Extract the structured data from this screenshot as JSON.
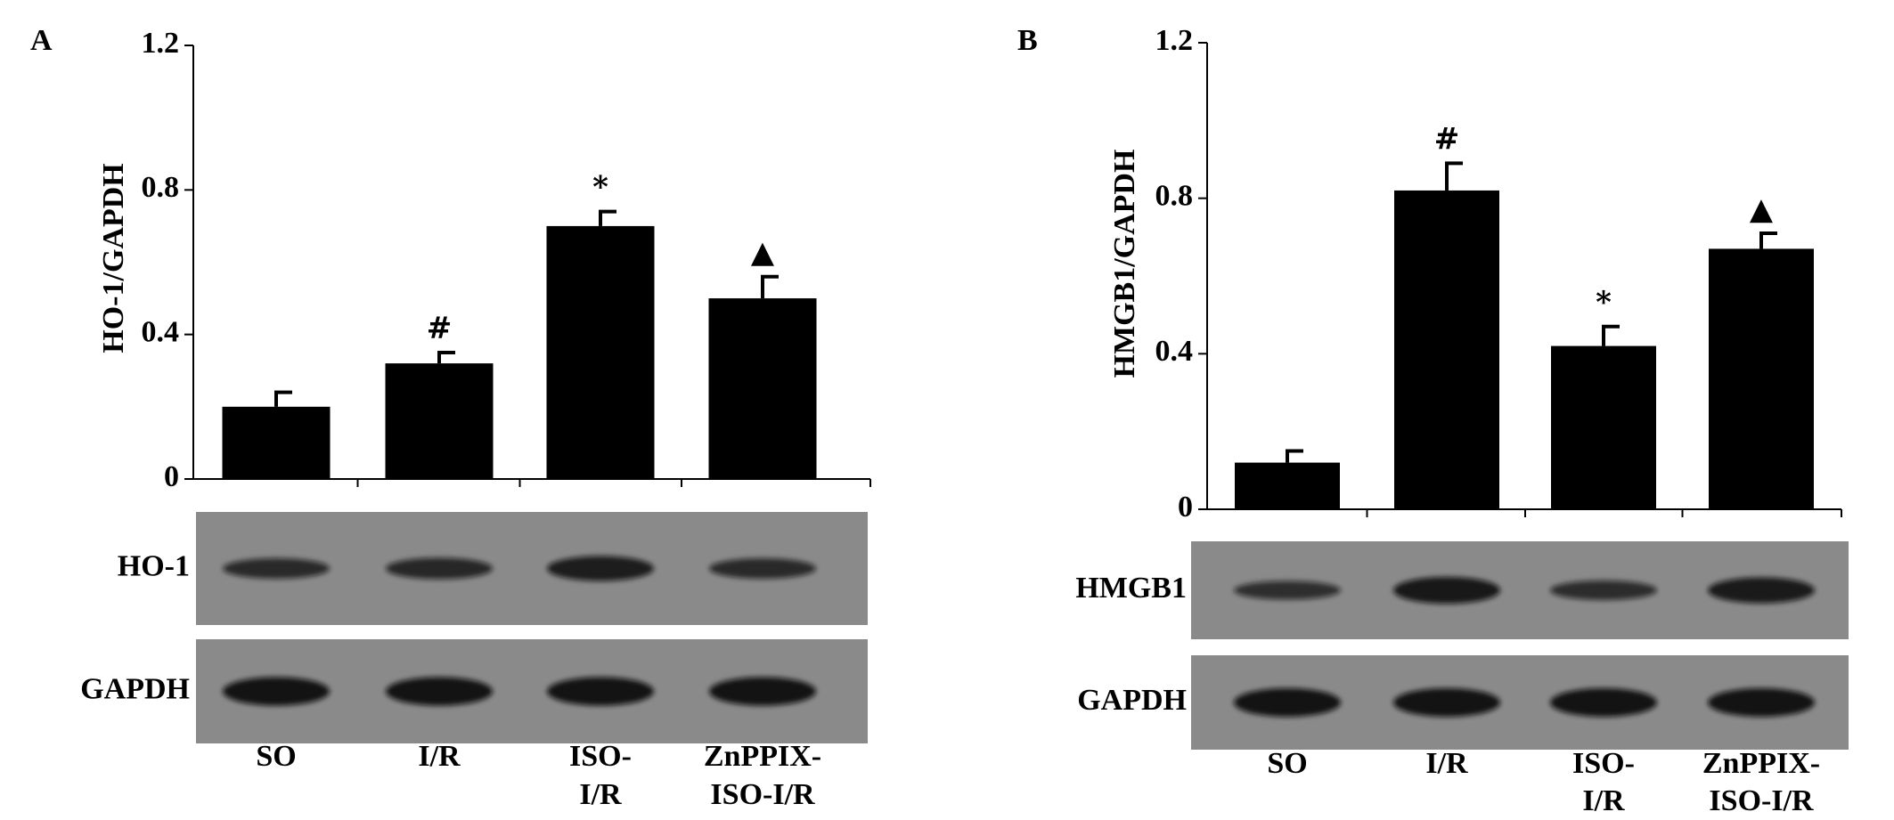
{
  "chart_data": [
    {
      "type": "bar",
      "panel": "A",
      "y_label": "HO-1/GAPDH",
      "categories": [
        [
          "SO"
        ],
        [
          "I/R"
        ],
        [
          "ISO-",
          "I/R"
        ],
        [
          "ZnPPIX-",
          "ISO-I/R"
        ]
      ],
      "values": [
        0.2,
        0.32,
        0.7,
        0.5
      ],
      "errors": [
        0.04,
        0.03,
        0.04,
        0.06
      ],
      "annotations": [
        null,
        "#",
        "*",
        "▲"
      ],
      "color": "#000000",
      "ylim": [
        0,
        1.2
      ],
      "yticks": [
        0,
        0.4,
        0.8,
        1.2
      ],
      "blot_labels": [
        "HO-1",
        "GAPDH"
      ]
    },
    {
      "type": "bar",
      "panel": "B",
      "y_label": "HMGB1/GAPDH",
      "categories": [
        [
          "SO"
        ],
        [
          "I/R"
        ],
        [
          "ISO-",
          "I/R"
        ],
        [
          "ZnPPIX-",
          "ISO-I/R"
        ]
      ],
      "values": [
        0.12,
        0.82,
        0.42,
        0.67
      ],
      "errors": [
        0.03,
        0.07,
        0.05,
        0.04
      ],
      "annotations": [
        null,
        "#",
        "*",
        "▲"
      ],
      "color": "#000000",
      "ylim": [
        0,
        1.2
      ],
      "yticks": [
        0,
        0.4,
        0.8,
        1.2
      ],
      "blot_labels": [
        "HMGB1",
        "GAPDH"
      ]
    }
  ]
}
